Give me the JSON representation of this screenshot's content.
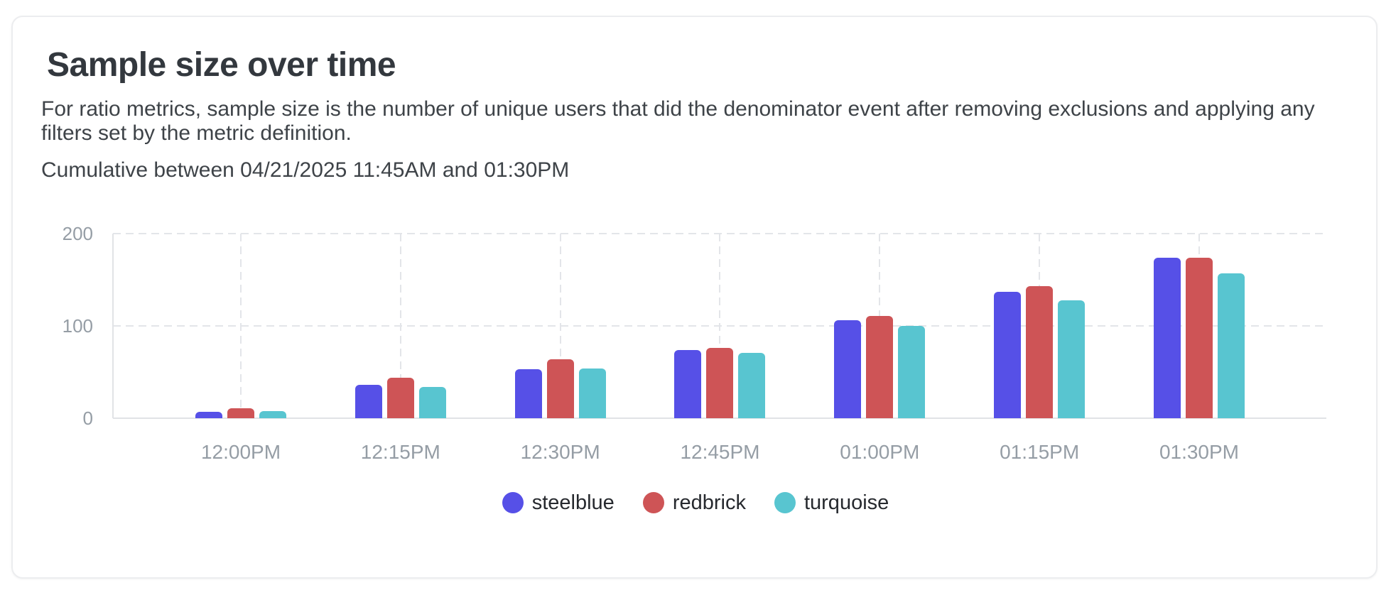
{
  "card": {
    "title": "Sample size over time",
    "description": "For ratio metrics, sample size is the number of unique users that did the denominator event after removing exclusions and applying any filters set by the metric definition.",
    "range_note": "Cumulative between 04/21/2025 11:45AM and 01:30PM"
  },
  "chart_data": {
    "type": "bar",
    "title": "Sample size over time",
    "categories": [
      "12:00PM",
      "12:15PM",
      "12:30PM",
      "12:45PM",
      "01:00PM",
      "01:15PM",
      "01:30PM"
    ],
    "series": [
      {
        "name": "steelblue",
        "color": "#5650E7",
        "values": [
          7,
          36,
          53,
          74,
          106,
          137,
          174
        ]
      },
      {
        "name": "redbrick",
        "color": "#CE5456",
        "values": [
          11,
          44,
          64,
          76,
          111,
          143,
          174
        ]
      },
      {
        "name": "turquoise",
        "color": "#58C5D0",
        "values": [
          8,
          34,
          54,
          71,
          100,
          128,
          157
        ]
      }
    ],
    "ylim": [
      0,
      200
    ],
    "yticks": [
      0,
      100,
      200
    ],
    "grid": true,
    "legend_position": "bottom",
    "axis_color": "#E1E3E6",
    "grid_color": "#E3E5E9",
    "tick_label_color": "#959DA5"
  }
}
